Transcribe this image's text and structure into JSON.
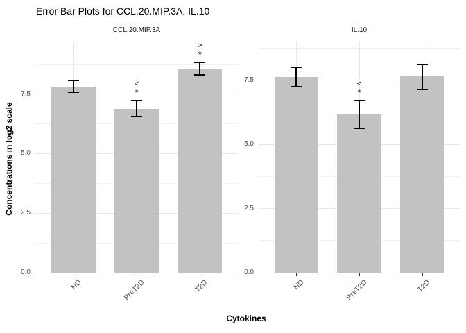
{
  "title": "Error Bar Plots for CCL.20.MIP.3A, IL.10",
  "y_axis_title": "Concentrations in log2 scale",
  "x_axis_title": "Cytokines",
  "colors": {
    "bar_fill": "#c2c2c2",
    "error_bar": "#000000",
    "grid_major": "#e7e7e7",
    "grid_minor": "#f2f2f2",
    "tick_label": "#4d4d4d",
    "annotation": "#111111",
    "background": "#ffffff"
  },
  "chart_data": {
    "type": "bar",
    "subtype": "error-bar-plot-faceted",
    "categories": [
      "ND",
      "PreT2D",
      "T2D"
    ],
    "y_major_ticks": [
      0,
      2.5,
      5,
      7.5
    ],
    "y_tick_labels": [
      "0.0",
      "2.5",
      "5.0",
      "7.5"
    ],
    "y_minor_ticks": [
      1.25,
      3.75,
      6.25,
      8.75
    ],
    "grid": "on",
    "legend": "none",
    "panels": [
      {
        "label": "CCL.20.MIP.3A",
        "ylim": [
          0,
          9.7
        ],
        "series": [
          {
            "category": "ND",
            "mean": 7.8,
            "ymin": 7.56,
            "ymax": 8.06,
            "sig": []
          },
          {
            "category": "PreT2D",
            "mean": 6.87,
            "ymin": 6.56,
            "ymax": 7.21,
            "sig": [
              "<",
              "*"
            ]
          },
          {
            "category": "T2D",
            "mean": 8.55,
            "ymin": 8.3,
            "ymax": 8.84,
            "sig": [
              ">",
              "*"
            ]
          }
        ]
      },
      {
        "label": "IL.10",
        "ylim": [
          0,
          9.0
        ],
        "series": [
          {
            "category": "ND",
            "mean": 7.63,
            "ymin": 7.23,
            "ymax": 7.99,
            "sig": []
          },
          {
            "category": "PreT2D",
            "mean": 6.15,
            "ymin": 5.61,
            "ymax": 6.69,
            "sig": [
              "<",
              "*"
            ]
          },
          {
            "category": "T2D",
            "mean": 7.64,
            "ymin": 7.14,
            "ymax": 8.11,
            "sig": []
          }
        ]
      }
    ]
  }
}
